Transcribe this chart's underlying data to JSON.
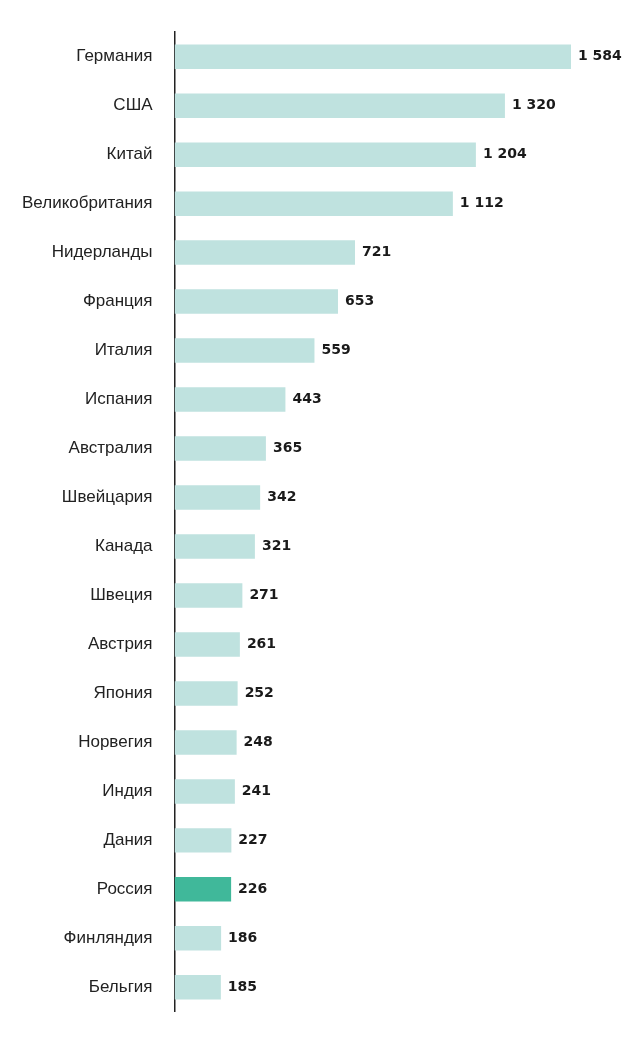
{
  "chart_data": {
    "type": "bar",
    "orientation": "horizontal",
    "categories": [
      "Германия",
      "США",
      "Китай",
      "Великобритания",
      "Нидерланды",
      "Франция",
      "Италия",
      "Испания",
      "Австралия",
      "Швейцария",
      "Канада",
      "Швеция",
      "Австрия",
      "Япония",
      "Норвегия",
      "Индия",
      "Дания",
      "Россия",
      "Финляндия",
      "Бельгия"
    ],
    "values": [
      1584,
      1320,
      1204,
      1112,
      721,
      653,
      559,
      443,
      365,
      342,
      321,
      271,
      261,
      252,
      248,
      241,
      227,
      226,
      186,
      185
    ],
    "colors": [
      "#bfe2df",
      "#bfe2df",
      "#bfe2df",
      "#bfe2df",
      "#bfe2df",
      "#bfe2df",
      "#bfe2df",
      "#bfe2df",
      "#bfe2df",
      "#bfe2df",
      "#bfe2df",
      "#bfe2df",
      "#bfe2df",
      "#bfe2df",
      "#bfe2df",
      "#bfe2df",
      "#bfe2df",
      "#40b89a",
      "#bfe2df",
      "#bfe2df"
    ],
    "value_labels": [
      "1 584",
      "1 320",
      "1 204",
      "1 112",
      "721",
      "653",
      "559",
      "443",
      "365",
      "342",
      "321",
      "271",
      "261",
      "252",
      "248",
      "241",
      "227",
      "226",
      "186",
      "185"
    ],
    "xlim": [
      0,
      1584
    ],
    "tick_labels": "y"
  }
}
